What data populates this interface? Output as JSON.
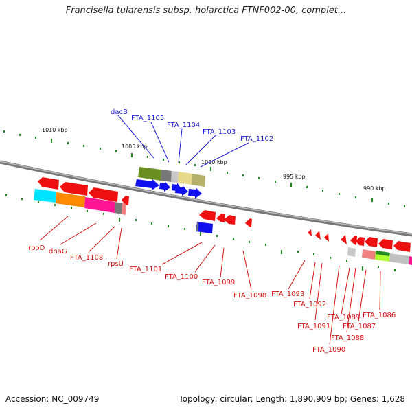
{
  "title": "Francisella tularensis subsp. holarctica FTNF002-00, complet...",
  "footer": {
    "accession": "Accession: NC_009749",
    "summary": "Topology: circular; Length: 1,890,909 bp; Genes: 1,628"
  },
  "colors": {
    "backbone": "#8a8a8a",
    "tick": "#1f8a1f",
    "label_top": "#1b1bd6",
    "label_bottom": "#d41010",
    "gene_forward": "#1010ee",
    "gene_reverse": "#ee1010"
  },
  "kbp_labels": [
    "1010 kbp",
    "1005 kbp",
    "1000 kbp",
    "995 kbp",
    "990 kbp"
  ],
  "top_genes": [
    "dacB",
    "FTA_1105",
    "FTA_1104",
    "FTA_1103",
    "FTA_1102"
  ],
  "bottom_genes": [
    "rpoD",
    "dnaG",
    "FTA_1108",
    "rpsU",
    "FTA_1101",
    "FTA_1100",
    "FTA_1099",
    "FTA_1098",
    "FTA_1093",
    "FTA_1092",
    "FTA_1091",
    "FTA_1090",
    "FTA_1089",
    "FTA_1088",
    "FTA_1087",
    "FTA_1086"
  ]
}
